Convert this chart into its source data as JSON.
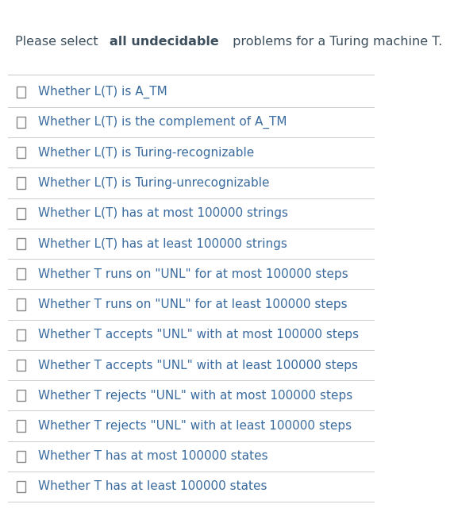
{
  "title_parts": [
    {
      "text": "Please select ",
      "bold": false,
      "color": "#3d4f5c"
    },
    {
      "text": "all undecidable",
      "bold": true,
      "color": "#3d4f5c"
    },
    {
      "text": " problems for a Turing machine T.",
      "bold": false,
      "color": "#3d4f5c"
    }
  ],
  "items": [
    "Whether L(T) is A_TM",
    "Whether L(T) is the complement of A_TM",
    "Whether L(T) is Turing-recognizable",
    "Whether L(T) is Turing-unrecognizable",
    "Whether L(T) has at most 100000 strings",
    "Whether L(T) has at least 100000 strings",
    "Whether T runs on \"UNL\" for at most 100000 steps",
    "Whether T runs on \"UNL\" for at least 100000 steps",
    "Whether T accepts \"UNL\" with at most 100000 steps",
    "Whether T accepts \"UNL\" with at least 100000 steps",
    "Whether T rejects \"UNL\" with at most 100000 steps",
    "Whether T rejects \"UNL\" with at least 100000 steps",
    "Whether T has at most 100000 states",
    "Whether T has at least 100000 states"
  ],
  "item_color": "#3a6b9e",
  "title_color": "#3d4f5c",
  "bold_color": "#3d4f5c",
  "checkbox_color": "#888888",
  "line_color": "#cccccc",
  "bg_color": "#ffffff",
  "title_fontsize": 11.5,
  "item_fontsize": 11.0,
  "checkbox_size": 10,
  "fig_width": 5.72,
  "fig_height": 6.45,
  "dpi": 100
}
